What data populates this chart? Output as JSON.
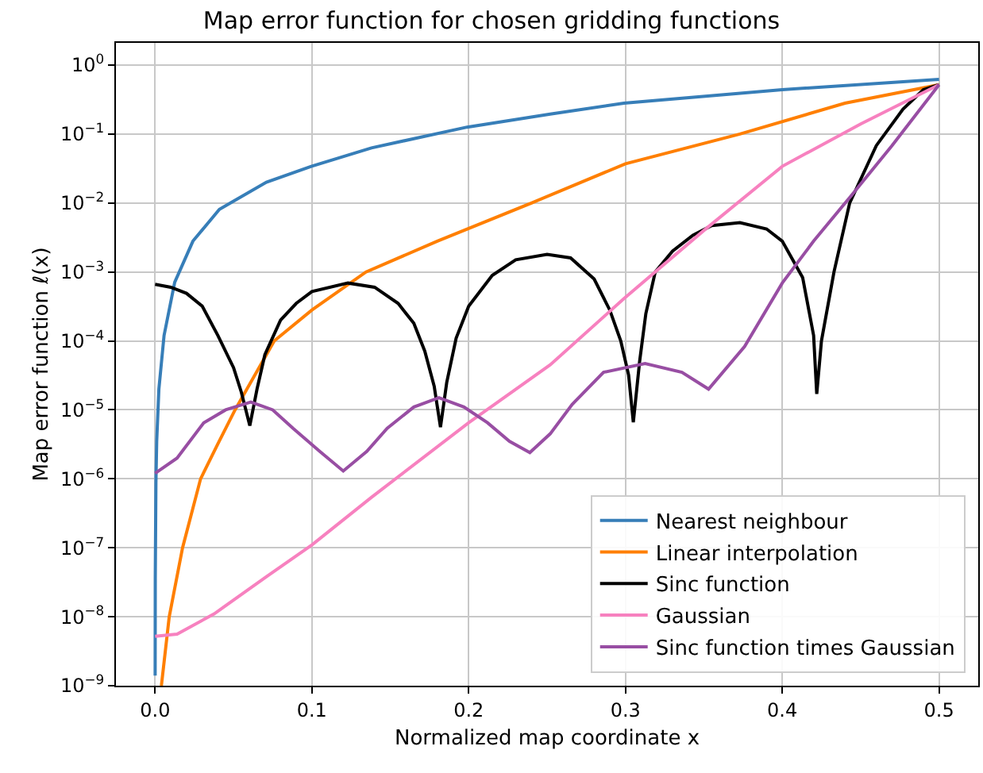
{
  "chart_data": {
    "type": "line",
    "title": "Map error function for chosen gridding functions",
    "xlabel": "Normalized map coordinate x",
    "ylabel": "Map error function ℓ(x)",
    "log": "y",
    "grid": true,
    "legend": "bottom right",
    "marker": "none",
    "line_style": "solid",
    "xlim": [
      -0.025,
      0.525
    ],
    "xticks": [
      {
        "value": 0,
        "label": "0.0"
      },
      0.1,
      0.2,
      0.3,
      0.4,
      0.5
    ],
    "ylim": [
      1e-09,
      2.1
    ],
    "yticks": [
      {
        "value": 1e-09,
        "label": "10$^{−9}$"
      },
      {
        "value": 1e-08,
        "label": "10$^{−8}$"
      },
      {
        "value": 1e-07,
        "label": "10$^{−7}$"
      },
      {
        "value": 1e-06,
        "label": "10$^{−6}$"
      },
      {
        "value": 1e-05,
        "label": "10$^{−5}$"
      },
      {
        "value": 0.0001,
        "label": "10$^{−4}$"
      },
      {
        "value": 0.001,
        "label": "10$^{−3}$"
      },
      {
        "value": 0.01,
        "label": "10$^{−2}$"
      },
      {
        "value": 0.1,
        "label": "10$^{−1}$"
      },
      {
        "value": 1,
        "label": "10$^{0}$"
      }
    ],
    "series": [
      {
        "name": "Nearest neighbour",
        "color": "#377eb8",
        "x": [
          2e-05,
          0.0001,
          0.0005,
          0.001,
          0.0024,
          0.0057,
          0.0125,
          0.0241,
          0.041,
          0.071,
          0.0996,
          0.138,
          0.199,
          0.252,
          0.299,
          0.4,
          0.5
        ],
        "values": [
          1.4e-09,
          3.5e-08,
          8.7e-07,
          3.5e-06,
          2e-05,
          0.00012,
          0.00071,
          0.0028,
          0.0081,
          0.02,
          0.034,
          0.063,
          0.126,
          0.195,
          0.28,
          0.44,
          0.62
        ]
      },
      {
        "name": "Linear interpolation",
        "color": "#ff7f00",
        "x": [
          0.004,
          0.009,
          0.0175,
          0.029,
          0.04,
          0.051,
          0.076,
          0.1,
          0.1345,
          0.18,
          0.24,
          0.3,
          0.373,
          0.44,
          0.5
        ],
        "values": [
          1e-09,
          1e-08,
          1e-07,
          1e-06,
          3.2e-06,
          1e-05,
          0.0001,
          0.00028,
          0.001,
          0.0028,
          0.01,
          0.037,
          0.1,
          0.28,
          0.52
        ]
      },
      {
        "name": "Sinc function",
        "color": "#000000",
        "x": [
          0,
          0.01,
          0.02,
          0.03,
          0.04,
          0.05,
          0.055,
          0.0604,
          0.065,
          0.07,
          0.08,
          0.09,
          0.1,
          0.123,
          0.14,
          0.155,
          0.165,
          0.172,
          0.178,
          0.182,
          0.186,
          0.192,
          0.2,
          0.215,
          0.23,
          0.25,
          0.265,
          0.28,
          0.29,
          0.297,
          0.302,
          0.305,
          0.309,
          0.313,
          0.319,
          0.33,
          0.343,
          0.355,
          0.373,
          0.39,
          0.4,
          0.413,
          0.42,
          0.422,
          0.425,
          0.433,
          0.443,
          0.46,
          0.477,
          0.49,
          0.5
        ],
        "values": [
          0.00066,
          0.0006,
          0.00049,
          0.00032,
          0.00012,
          4.1e-05,
          1.8e-05,
          5.9e-06,
          2e-05,
          6.3e-05,
          0.0002,
          0.00035,
          0.00052,
          0.00069,
          0.0006,
          0.00035,
          0.00018,
          7.1e-05,
          2.2e-05,
          5.6e-06,
          2.5e-05,
          0.00011,
          0.00032,
          0.00089,
          0.0015,
          0.0018,
          0.0016,
          0.00079,
          0.00028,
          0.0001,
          3.2e-05,
          6.6e-06,
          5e-05,
          0.00025,
          0.001,
          0.002,
          0.0034,
          0.0047,
          0.0052,
          0.0042,
          0.0028,
          0.00083,
          0.00012,
          1.7e-05,
          0.0001,
          0.001,
          0.01,
          0.068,
          0.23,
          0.44,
          0.52
        ]
      },
      {
        "name": "Gaussian",
        "color": "#f781bf",
        "x": [
          0,
          0.014,
          0.0376,
          0.071,
          0.1,
          0.138,
          0.2,
          0.252,
          0.299,
          0.35,
          0.4,
          0.45,
          0.5
        ],
        "values": [
          5.2e-09,
          5.6e-09,
          1.1e-08,
          3.8e-08,
          1.1e-07,
          5.4e-07,
          6.5e-06,
          4.5e-05,
          0.00041,
          0.004,
          0.034,
          0.14,
          0.52
        ]
      },
      {
        "name": "Sinc function times Gaussian",
        "color": "#984ea3",
        "x": [
          0,
          0.014,
          0.031,
          0.045,
          0.061,
          0.075,
          0.088,
          0.105,
          0.12,
          0.135,
          0.148,
          0.165,
          0.181,
          0.197,
          0.212,
          0.226,
          0.239,
          0.252,
          0.266,
          0.286,
          0.3125,
          0.336,
          0.353,
          0.376,
          0.4,
          0.42,
          0.443,
          0.47,
          0.5
        ],
        "values": [
          1.2e-06,
          2e-06,
          6.5e-06,
          1e-05,
          1.3e-05,
          1e-05,
          5.4e-06,
          2.5e-06,
          1.3e-06,
          2.5e-06,
          5.4e-06,
          1.1e-05,
          1.5e-05,
          1.1e-05,
          6.5e-06,
          3.5e-06,
          2.4e-06,
          4.5e-06,
          1.2e-05,
          3.5e-05,
          4.7e-05,
          3.5e-05,
          2e-05,
          8.3e-05,
          0.00069,
          0.0028,
          0.012,
          0.068,
          0.52
        ]
      }
    ]
  }
}
